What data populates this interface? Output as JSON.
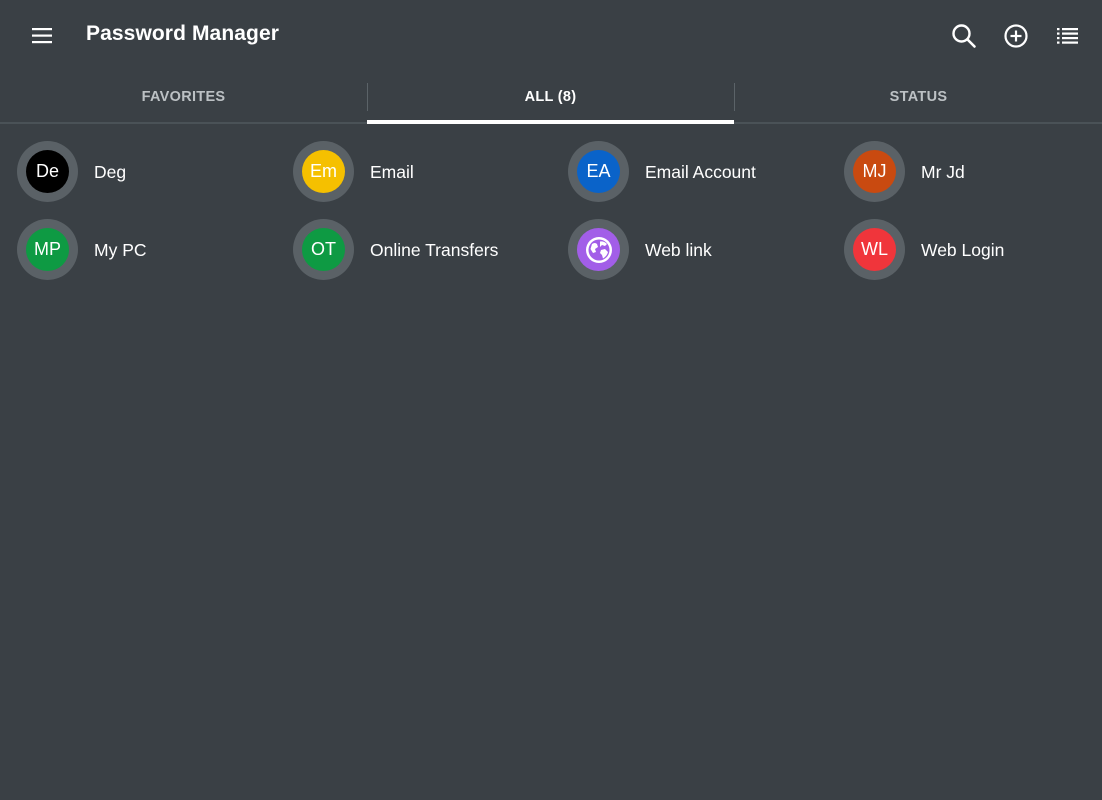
{
  "appbar": {
    "title": "Password Manager",
    "menu_icon": "hamburger-menu-icon",
    "actions": [
      "search-icon",
      "add-circle-icon",
      "list-view-icon"
    ]
  },
  "tabs": [
    {
      "label": "FAVORITES",
      "active": false
    },
    {
      "label": "ALL (8)",
      "active": true
    },
    {
      "label": "STATUS",
      "active": false
    }
  ],
  "entries": [
    {
      "initials": "De",
      "label": "Deg",
      "color": "#000000"
    },
    {
      "initials": "Em",
      "label": "Email",
      "color": "#f5c000"
    },
    {
      "initials": "EA",
      "label": "Email Account",
      "color": "#0a63c9"
    },
    {
      "initials": "MJ",
      "label": "Mr Jd",
      "color": "#c94a10"
    },
    {
      "initials": "MP",
      "label": "My PC",
      "color": "#0e9a43"
    },
    {
      "initials": "OT",
      "label": "Online Transfers",
      "color": "#0e9a43"
    },
    {
      "initials": "",
      "label": "Web link",
      "color": "#a25ee8",
      "icon": "globe-icon"
    },
    {
      "initials": "WL",
      "label": "Web Login",
      "color": "#f0353b"
    }
  ],
  "colors": {
    "background": "#3a4045",
    "avatar_ring": "#5a6166",
    "tab_indicator": "#ffffff"
  }
}
